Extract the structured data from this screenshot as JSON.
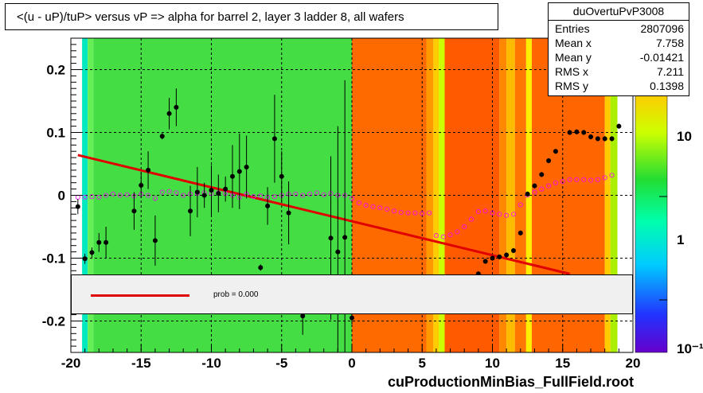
{
  "title": "<(u - uP)/tuP> versus   vP => alpha for barrel 2, layer 3 ladder 8, all wafers",
  "stats": {
    "name": "duOvertuPvP3008",
    "rows": [
      {
        "key": "Entries",
        "value": "2807096"
      },
      {
        "key": "Mean x",
        "value": "7.758"
      },
      {
        "key": "Mean y",
        "value": "-0.01421"
      },
      {
        "key": "RMS x",
        "value": "7.211"
      },
      {
        "key": "RMS y",
        "value": "0.1398"
      }
    ]
  },
  "legend": {
    "label": "prob = 0.000",
    "color": "#e00000"
  },
  "footer": "cuProductionMinBias_FullField.root",
  "colorbar": {
    "ticks": [
      "10",
      "1",
      "10⁻¹"
    ]
  },
  "chart_data": {
    "type": "scatter",
    "title": "<(u - uP)/tuP> versus   vP => alpha for barrel 2, layer 3 ladder 8, all wafers",
    "xlim": [
      -20,
      20
    ],
    "ylim": [
      -0.25,
      0.25
    ],
    "x_ticks": [
      "-20",
      "-15",
      "-10",
      "-5",
      "0",
      "5",
      "10",
      "15",
      "20"
    ],
    "y_ticks": [
      "0.2",
      "0.1",
      "0",
      "-0.1",
      "-0.2"
    ],
    "grid": true,
    "colors": {
      "profile": "#000000",
      "mean_markers": "#ff00ff",
      "fit": "#e00000"
    },
    "profile_points": [
      {
        "x": -19.5,
        "y": -0.018,
        "err": 0.012
      },
      {
        "x": -19.0,
        "y": -0.101,
        "err": 0.008
      },
      {
        "x": -18.5,
        "y": -0.091,
        "err": 0.008
      },
      {
        "x": -18.0,
        "y": -0.075,
        "err": 0.015
      },
      {
        "x": -17.5,
        "y": -0.075,
        "err": 0.025
      },
      {
        "x": -15.5,
        "y": -0.025,
        "err": 0.03
      },
      {
        "x": -15.0,
        "y": 0.016,
        "err": 0.02
      },
      {
        "x": -14.5,
        "y": 0.04,
        "err": 0.03
      },
      {
        "x": -14.0,
        "y": -0.072,
        "err": 0.04
      },
      {
        "x": -13.5,
        "y": 0.094,
        "err": 0.005
      },
      {
        "x": -13.0,
        "y": 0.13,
        "err": 0.025
      },
      {
        "x": -12.5,
        "y": 0.14,
        "err": 0.03
      },
      {
        "x": -11.5,
        "y": -0.025,
        "err": 0.04
      },
      {
        "x": -11.0,
        "y": 0.005,
        "err": 0.04
      },
      {
        "x": -10.5,
        "y": 0.0,
        "err": 0.02
      },
      {
        "x": -10.0,
        "y": 0.008,
        "err": 0.04
      },
      {
        "x": -9.5,
        "y": 0.003,
        "err": 0.03
      },
      {
        "x": -9.0,
        "y": 0.01,
        "err": 0.02
      },
      {
        "x": -8.5,
        "y": 0.03,
        "err": 0.05
      },
      {
        "x": -8.0,
        "y": 0.038,
        "err": 0.06
      },
      {
        "x": -7.5,
        "y": 0.045,
        "err": 0.05
      },
      {
        "x": -6.5,
        "y": -0.115,
        "err": 0.005
      },
      {
        "x": -6.0,
        "y": -0.017,
        "err": 0.03
      },
      {
        "x": -5.5,
        "y": 0.09,
        "err": 0.07
      },
      {
        "x": -5.0,
        "y": 0.03,
        "err": 0.04
      },
      {
        "x": -4.5,
        "y": -0.028,
        "err": 0.05
      },
      {
        "x": -3.5,
        "y": -0.192,
        "err": 0.03
      },
      {
        "x": -1.5,
        "y": -0.068,
        "err": 0.13
      },
      {
        "x": -1.0,
        "y": -0.09,
        "err": 0.2
      },
      {
        "x": -0.5,
        "y": -0.067,
        "err": 0.25
      },
      {
        "x": 0.0,
        "y": -0.195,
        "err": 0.01
      },
      {
        "x": 9.0,
        "y": -0.125,
        "err": 0.004
      },
      {
        "x": 9.5,
        "y": -0.105,
        "err": 0.004
      },
      {
        "x": 10.0,
        "y": -0.1,
        "err": 0.004
      },
      {
        "x": 10.5,
        "y": -0.098,
        "err": 0.004
      },
      {
        "x": 11.0,
        "y": -0.095,
        "err": 0.004
      },
      {
        "x": 11.5,
        "y": -0.088,
        "err": 0.004
      },
      {
        "x": 12.0,
        "y": -0.06,
        "err": 0.004
      },
      {
        "x": 12.5,
        "y": 0.002,
        "err": 0.004
      },
      {
        "x": 13.0,
        "y": 0.015,
        "err": 0.004
      },
      {
        "x": 13.5,
        "y": 0.033,
        "err": 0.004
      },
      {
        "x": 14.0,
        "y": 0.055,
        "err": 0.004
      },
      {
        "x": 14.5,
        "y": 0.07,
        "err": 0.004
      },
      {
        "x": 15.5,
        "y": 0.1,
        "err": 0.004
      },
      {
        "x": 16.0,
        "y": 0.101,
        "err": 0.004
      },
      {
        "x": 16.5,
        "y": 0.1,
        "err": 0.004
      },
      {
        "x": 17.0,
        "y": 0.093,
        "err": 0.004
      },
      {
        "x": 17.5,
        "y": 0.09,
        "err": 0.004
      },
      {
        "x": 18.0,
        "y": 0.09,
        "err": 0.004
      },
      {
        "x": 18.5,
        "y": 0.09,
        "err": 0.004
      },
      {
        "x": 19.0,
        "y": 0.11,
        "err": 0.004
      }
    ],
    "mean_points": [
      {
        "x": -19.5,
        "y": -0.003
      },
      {
        "x": -19.0,
        "y": -0.003
      },
      {
        "x": -18.5,
        "y": -0.002
      },
      {
        "x": -18.0,
        "y": -0.003
      },
      {
        "x": -17.5,
        "y": 0.0
      },
      {
        "x": -17.0,
        "y": 0.002
      },
      {
        "x": -16.5,
        "y": 0.0
      },
      {
        "x": -16.0,
        "y": 0.001
      },
      {
        "x": -15.5,
        "y": -0.001
      },
      {
        "x": -15.0,
        "y": 0.002
      },
      {
        "x": -14.5,
        "y": 0.0
      },
      {
        "x": -14.0,
        "y": -0.005
      },
      {
        "x": -13.5,
        "y": 0.005
      },
      {
        "x": -13.0,
        "y": 0.006
      },
      {
        "x": -12.5,
        "y": 0.004
      },
      {
        "x": -12.0,
        "y": 0.0
      },
      {
        "x": -11.5,
        "y": 0.002
      },
      {
        "x": -11.0,
        "y": 0.003
      },
      {
        "x": -10.5,
        "y": 0.004
      },
      {
        "x": -10.0,
        "y": 0.003
      },
      {
        "x": -9.5,
        "y": 0.004
      },
      {
        "x": -9.0,
        "y": 0.003
      },
      {
        "x": -8.5,
        "y": 0.0
      },
      {
        "x": -8.0,
        "y": -0.003
      },
      {
        "x": -7.5,
        "y": 0.002
      },
      {
        "x": -7.0,
        "y": -0.002
      },
      {
        "x": -6.5,
        "y": -0.001
      },
      {
        "x": -6.0,
        "y": -0.003
      },
      {
        "x": -5.5,
        "y": -0.002
      },
      {
        "x": -5.0,
        "y": 0.0
      },
      {
        "x": -4.5,
        "y": 0.002
      },
      {
        "x": -4.0,
        "y": 0.002
      },
      {
        "x": -3.5,
        "y": 0.0
      },
      {
        "x": -3.0,
        "y": 0.002
      },
      {
        "x": -2.5,
        "y": 0.004
      },
      {
        "x": -2.0,
        "y": 0.001
      },
      {
        "x": -1.5,
        "y": 0.003
      },
      {
        "x": -1.0,
        "y": 0.0
      },
      {
        "x": -0.5,
        "y": 0.0
      },
      {
        "x": 0.0,
        "y": -0.005
      },
      {
        "x": 0.5,
        "y": -0.012
      },
      {
        "x": 1.0,
        "y": -0.016
      },
      {
        "x": 1.5,
        "y": -0.018
      },
      {
        "x": 2.0,
        "y": -0.02
      },
      {
        "x": 2.5,
        "y": -0.022
      },
      {
        "x": 3.0,
        "y": -0.025
      },
      {
        "x": 3.5,
        "y": -0.027
      },
      {
        "x": 4.0,
        "y": -0.028
      },
      {
        "x": 4.5,
        "y": -0.028
      },
      {
        "x": 5.0,
        "y": -0.029
      },
      {
        "x": 5.5,
        "y": -0.028
      },
      {
        "x": 6.0,
        "y": -0.064
      },
      {
        "x": 6.5,
        "y": -0.066
      },
      {
        "x": 7.0,
        "y": -0.063
      },
      {
        "x": 7.5,
        "y": -0.058
      },
      {
        "x": 8.0,
        "y": -0.05
      },
      {
        "x": 8.5,
        "y": -0.038
      },
      {
        "x": 9.0,
        "y": -0.026
      },
      {
        "x": 9.5,
        "y": -0.025
      },
      {
        "x": 10.0,
        "y": -0.028
      },
      {
        "x": 10.5,
        "y": -0.03
      },
      {
        "x": 11.0,
        "y": -0.032
      },
      {
        "x": 11.5,
        "y": -0.03
      },
      {
        "x": 12.0,
        "y": -0.015
      },
      {
        "x": 12.5,
        "y": 0.0
      },
      {
        "x": 13.0,
        "y": 0.005
      },
      {
        "x": 13.5,
        "y": 0.01
      },
      {
        "x": 14.0,
        "y": 0.015
      },
      {
        "x": 14.5,
        "y": 0.02
      },
      {
        "x": 15.0,
        "y": 0.022
      },
      {
        "x": 15.5,
        "y": 0.025
      },
      {
        "x": 16.0,
        "y": 0.025
      },
      {
        "x": 16.5,
        "y": 0.025
      },
      {
        "x": 17.0,
        "y": 0.024
      },
      {
        "x": 17.5,
        "y": 0.025
      },
      {
        "x": 18.0,
        "y": 0.028
      },
      {
        "x": 18.5,
        "y": 0.032
      }
    ],
    "fit_line": {
      "x": [
        -19.5,
        15.5
      ],
      "y": [
        0.064,
        -0.125
      ]
    }
  }
}
